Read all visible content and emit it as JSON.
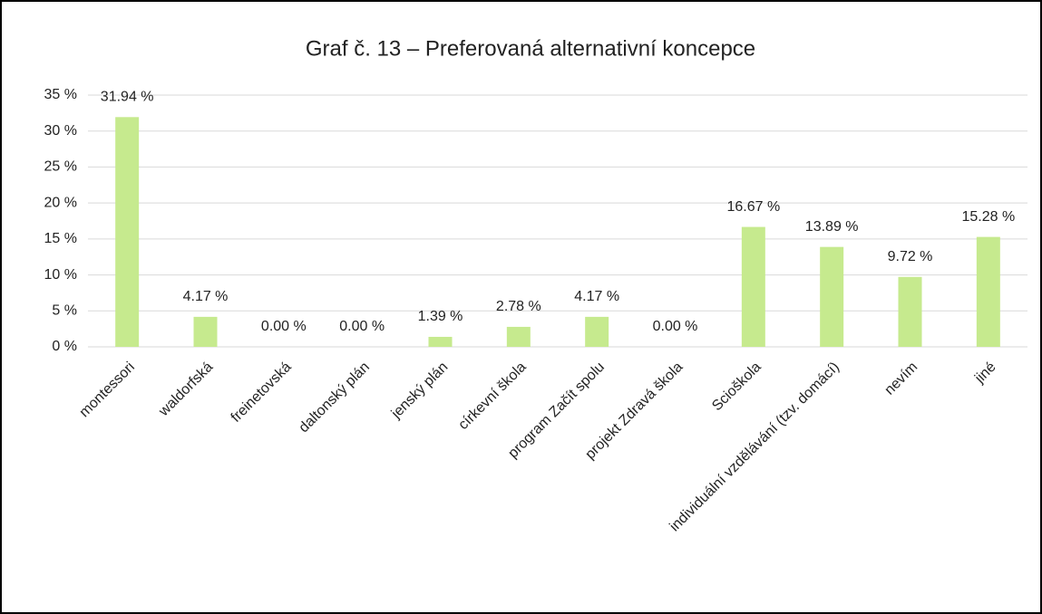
{
  "chart_data": {
    "type": "bar",
    "title": "Graf č. 13 – Preferovaná alternativní koncepce",
    "categories": [
      "montessori",
      "waldorfská",
      "freinetovská",
      "daltonský plán",
      "jenský plán",
      "církevní škola",
      "program Začít spolu",
      "projekt Zdravá škola",
      "Scioškola",
      "individuální vzdělávání (tzv. domácí)",
      "nevím",
      "jiné"
    ],
    "values": [
      31.94,
      4.17,
      0,
      0,
      1.39,
      2.78,
      4.17,
      0,
      16.67,
      13.89,
      9.72,
      15.28
    ],
    "value_labels": [
      "31.94 %",
      "4.17 %",
      "0.00 %",
      "0.00 %",
      "1.39 %",
      "2.78 %",
      "4.17 %",
      "0.00 %",
      "16.67 %",
      "13.89 %",
      "9.72 %",
      "15.28 %"
    ],
    "color": "#c6ea8e",
    "ylim": [
      0,
      35
    ],
    "yticks": [
      {
        "value": 0,
        "label": "0 %"
      },
      {
        "value": 5,
        "label": "5 %"
      },
      {
        "value": 10,
        "label": "10 %"
      },
      {
        "value": 15,
        "label": "15 %"
      },
      {
        "value": 20,
        "label": "20 %"
      },
      {
        "value": 25,
        "label": "25 %"
      },
      {
        "value": 30,
        "label": "30 %"
      },
      {
        "value": 35,
        "label": "35 %"
      }
    ],
    "grid": true
  }
}
